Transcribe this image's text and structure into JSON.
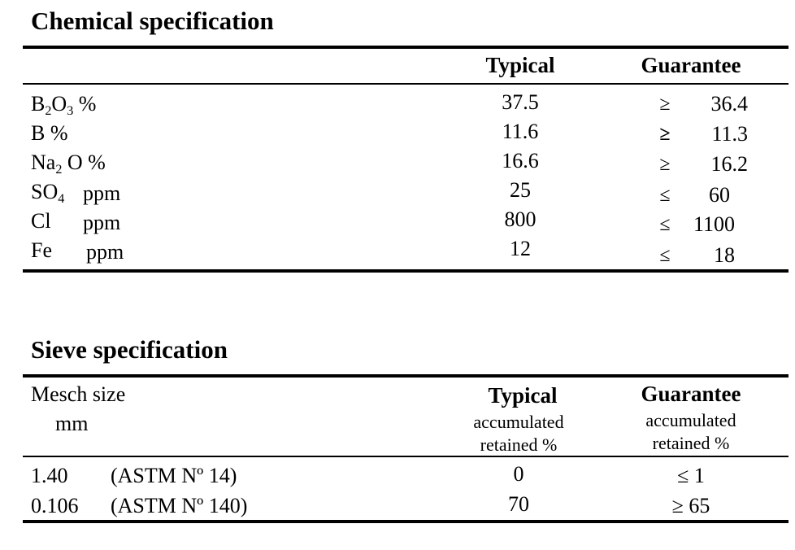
{
  "chemical": {
    "title": "Chemical specification",
    "headers": {
      "typical": "Typical",
      "guarantee": "Guarantee"
    },
    "rows": [
      {
        "name": {
          "main": "B",
          "sub1": "2",
          "mid": "O",
          "sub2": "3",
          "tail": " %"
        },
        "unit": "",
        "typical": "37.5",
        "op": "≥",
        "guarantee": "36.4"
      },
      {
        "name": {
          "main": "B %",
          "sub1": "",
          "mid": "",
          "sub2": "",
          "tail": ""
        },
        "unit": "",
        "typical": "11.6",
        "op": "≥",
        "guarantee": "11.3"
      },
      {
        "name": {
          "main": "Na",
          "sub1": "2",
          "mid": " O %",
          "sub2": "",
          "tail": ""
        },
        "unit": "",
        "typical": "16.6",
        "op": "≥",
        "guarantee": "16.2"
      },
      {
        "name": {
          "main": "SO",
          "sub1": "4",
          "mid": "",
          "sub2": "",
          "tail": ""
        },
        "unit": "ppm",
        "typical": "25",
        "op": "≤",
        "guarantee": "60"
      },
      {
        "name": {
          "main": "Cl",
          "sub1": "",
          "mid": "",
          "sub2": "",
          "tail": ""
        },
        "unit": "ppm",
        "typical": "800",
        "op": "≤",
        "guarantee": "1100"
      },
      {
        "name": {
          "main": "Fe",
          "sub1": "",
          "mid": "",
          "sub2": "",
          "tail": ""
        },
        "unit": "ppm",
        "typical": "12",
        "op": "≤",
        "guarantee": "18"
      }
    ]
  },
  "sieve": {
    "title": "Sieve specification",
    "headers": {
      "mesh_line1": "Mesch size",
      "mesh_line2": "mm",
      "typical": "Typical",
      "typical_sub1": "accumulated",
      "typical_sub2": "retained %",
      "guarantee": "Guarantee",
      "guarantee_sub1": "accumulated",
      "guarantee_sub2": "retained %"
    },
    "rows": [
      {
        "size": "1.40",
        "astm": "(ASTM Nº 14)",
        "typical": "0",
        "guarantee": "≤  1"
      },
      {
        "size": "0.106",
        "astm": "(ASTM Nº 140)",
        "typical": "70",
        "guarantee": "≥ 65"
      }
    ]
  }
}
